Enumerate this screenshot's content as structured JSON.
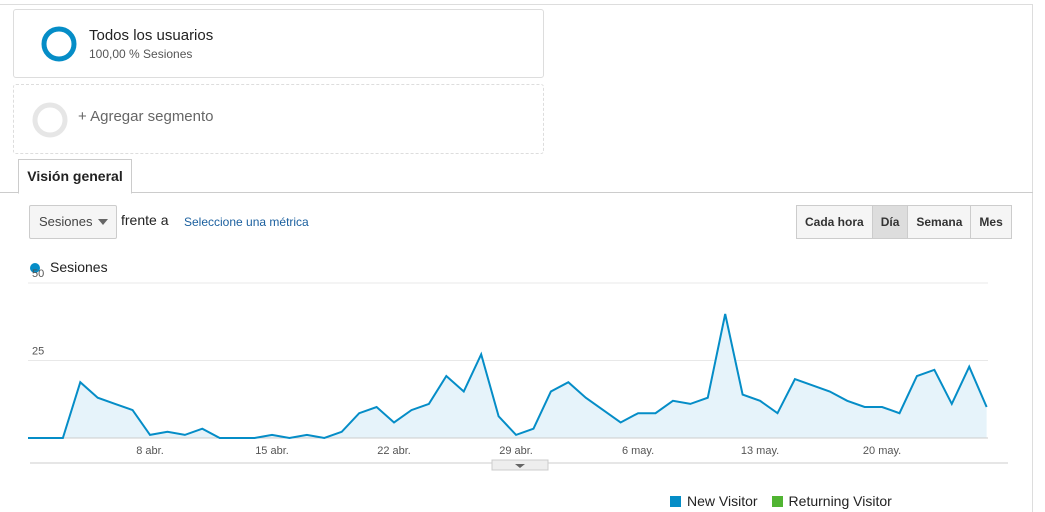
{
  "segments": [
    {
      "title": "Todos los usuarios",
      "subtitle": "100,00 % Sesiones"
    }
  ],
  "add_segment": "+ Agregar segmento",
  "tab": "Visión general",
  "metric_select": "Sesiones",
  "versus": "frente a",
  "select_metric": "Seleccione una métrica",
  "granularity": {
    "options": [
      "Cada hora",
      "Día",
      "Semana",
      "Mes"
    ],
    "selected": 1
  },
  "chart_data": {
    "type": "line",
    "categories": [
      null,
      null,
      null,
      null,
      null,
      null,
      null,
      "8 abr.",
      null,
      null,
      null,
      null,
      null,
      null,
      "15 abr.",
      null,
      null,
      null,
      null,
      null,
      null,
      "22 abr.",
      null,
      null,
      null,
      null,
      null,
      null,
      "29 abr.",
      null,
      null,
      null,
      null,
      null,
      null,
      "6 may.",
      null,
      null,
      null,
      null,
      null,
      null,
      "13 may.",
      null,
      null,
      null,
      null,
      null,
      null,
      "20 may.",
      null,
      null,
      null,
      null,
      null,
      null
    ],
    "series": [
      {
        "name": "Sesiones",
        "color": "#058dc7",
        "values": [
          0,
          0,
          0,
          18,
          13,
          11,
          9,
          1,
          2,
          1,
          3,
          0,
          0,
          0,
          1,
          0,
          1,
          0,
          2,
          8,
          10,
          5,
          9,
          11,
          20,
          15,
          27,
          7,
          1,
          3,
          15,
          18,
          13,
          9,
          5,
          8,
          8,
          12,
          11,
          13,
          40,
          14,
          12,
          8,
          19,
          17,
          15,
          12,
          10,
          10,
          8,
          20,
          22,
          11,
          23,
          10
        ]
      }
    ],
    "ylim": [
      0,
      50
    ],
    "yticks": [
      25,
      50
    ],
    "grid": true,
    "area": true
  },
  "visitor_legend": [
    {
      "name": "New Visitor",
      "color": "#058dc7"
    },
    {
      "name": "Returning Visitor",
      "color": "#50b432"
    }
  ]
}
